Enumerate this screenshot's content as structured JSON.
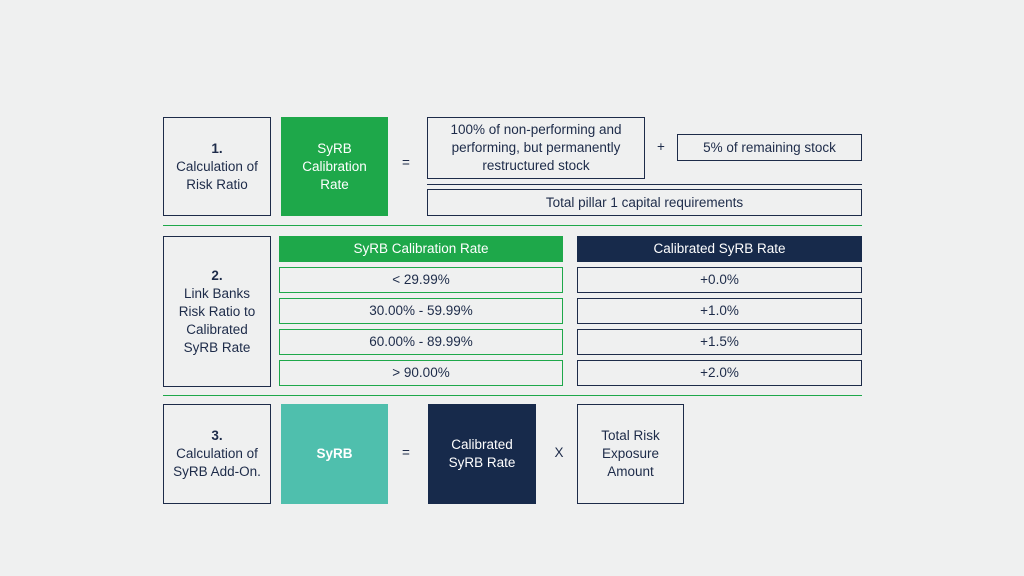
{
  "step1": {
    "number": "1.",
    "label": "Calculation of Risk Ratio",
    "rate_box": "SyRB Calibration Rate",
    "equals": "=",
    "numerator_a": "100%  of non-performing and performing, but permanently restructured stock",
    "plus": "+",
    "numerator_b": "5%  of remaining stock",
    "denominator": "Total pillar 1 capital requirements"
  },
  "step2": {
    "number": "2.",
    "label": "Link Banks Risk Ratio to Calibrated SyRB Rate",
    "left_header": "SyRB Calibration Rate",
    "right_header": "Calibrated SyRB Rate",
    "rows": [
      {
        "range": "< 29.99%",
        "rate": "+0.0%"
      },
      {
        "range": "30.00% - 59.99%",
        "rate": "+1.0%"
      },
      {
        "range": "60.00% - 89.99%",
        "rate": "+1.5%"
      },
      {
        "range": "> 90.00%",
        "rate": "+2.0%"
      }
    ]
  },
  "step3": {
    "number": "3.",
    "label": "Calculation of SyRB Add-On.",
    "syrb": "SyRB",
    "equals": "=",
    "calibrated": "Calibrated SyRB Rate",
    "times": "X",
    "exposure": "Total Risk Exposure Amount"
  },
  "colors": {
    "navy": "#172a4b",
    "green": "#1ea84a",
    "teal": "#4fbfad",
    "background": "#eff0f0"
  }
}
